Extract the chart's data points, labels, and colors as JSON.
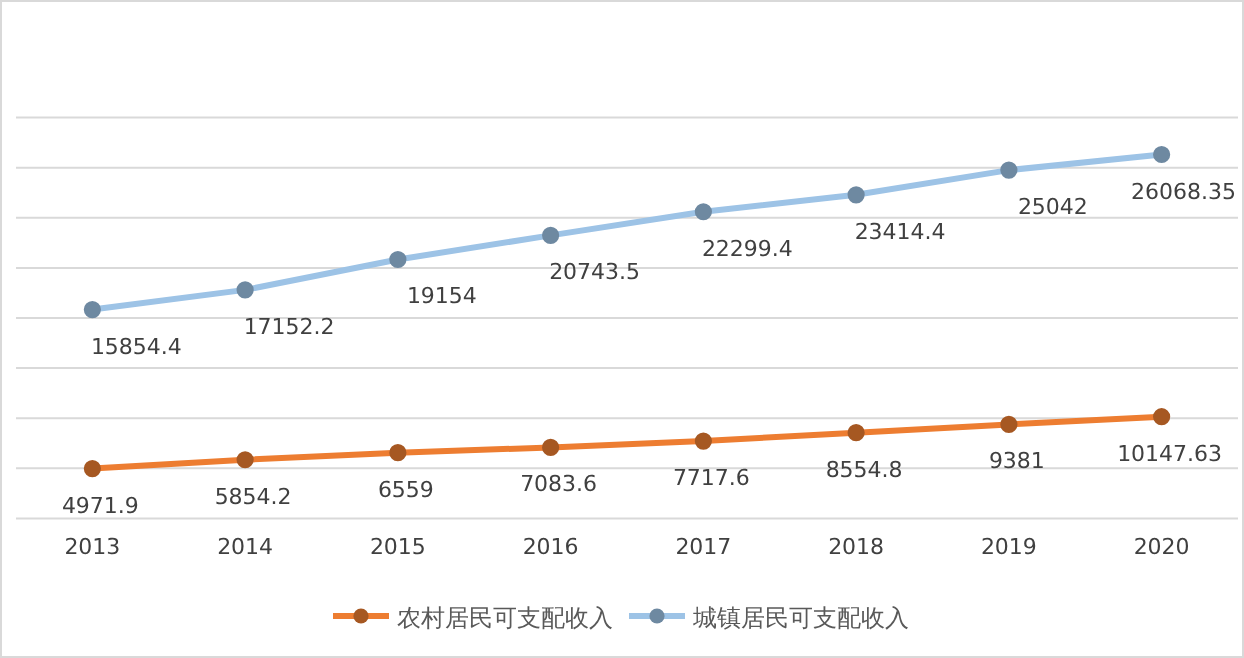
{
  "chart_data": {
    "type": "line",
    "categories": [
      "2013",
      "2014",
      "2015",
      "2016",
      "2017",
      "2018",
      "2019",
      "2020"
    ],
    "series": [
      {
        "name": "农村居民可支配收入",
        "color": "#ed7d31",
        "values": [
          4971.9,
          5854.2,
          6559,
          7083.6,
          7717.6,
          8554.8,
          9381,
          10147.63
        ]
      },
      {
        "name": "城镇居民可支配收入",
        "color": "#9dc3e6",
        "axis": "y2",
        "values": [
          15854.4,
          17152.2,
          19154,
          20743.5,
          22299.4,
          23414.4,
          25042,
          26068.35
        ]
      }
    ],
    "ylim": [
      0,
      40000
    ],
    "yticks": [
      {
        "value": 0,
        "label": null
      },
      {
        "value": 5000,
        "label": null
      },
      {
        "value": 10000,
        "label": null
      },
      {
        "value": 15000,
        "label": null
      },
      {
        "value": 20000,
        "label": null
      },
      {
        "value": 25000,
        "label": null
      },
      {
        "value": 30000,
        "label": null
      },
      {
        "value": 35000,
        "label": null
      },
      {
        "value": 40000,
        "label": null
      }
    ],
    "y2lim": [
      2100,
      28500
    ],
    "tick_labels": "x",
    "grid": "y",
    "data_labels": true,
    "legend": "bottom",
    "marker": "circle",
    "line_style": "solid"
  }
}
